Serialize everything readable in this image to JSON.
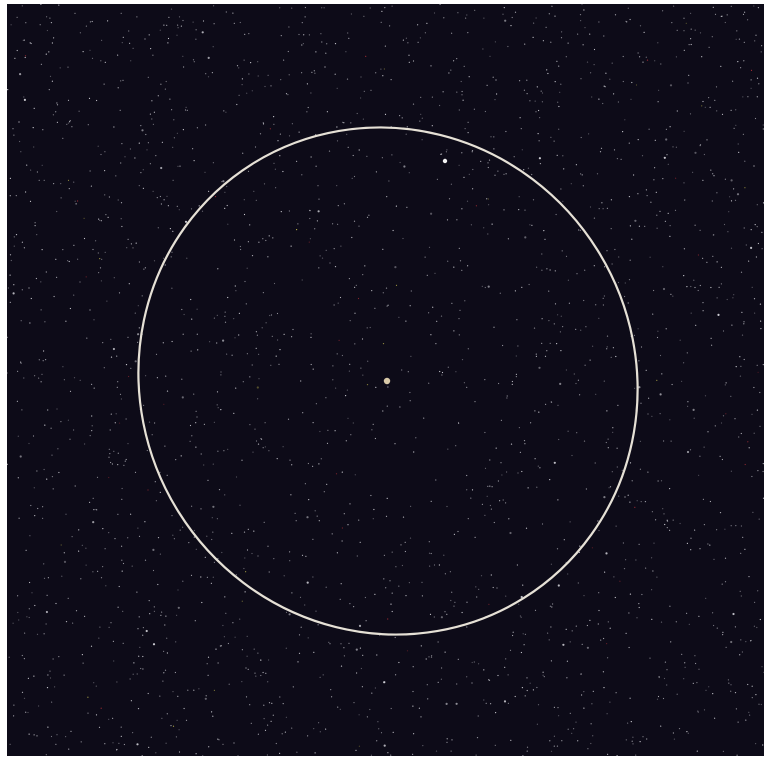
{
  "image": {
    "subject": "star-field",
    "colors": {
      "page_border": "#ffffff",
      "sky_background": "#0d0b18",
      "ellipse_stroke": "#e6e1d6",
      "star_white": "#d8d8de",
      "star_red": "#b8323a",
      "star_yellow": "#c8c050",
      "center_object": "#d8c9a8"
    }
  }
}
